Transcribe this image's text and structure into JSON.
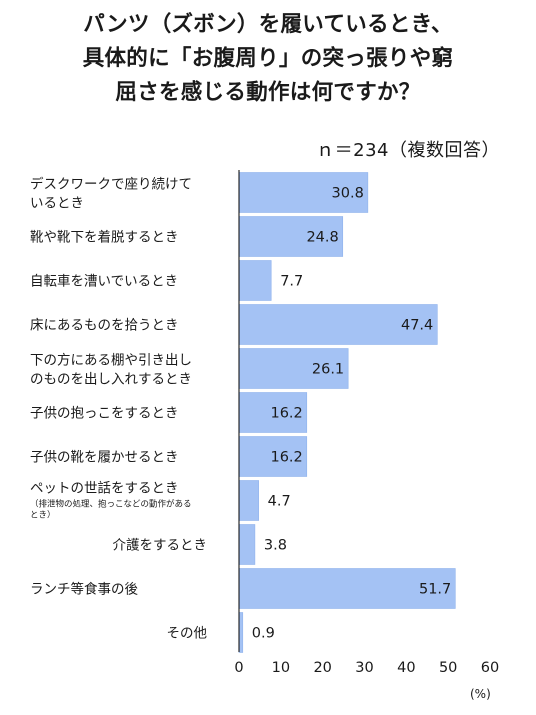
{
  "title_lines": [
    "パンツ（ズボン）を履いているとき、",
    "具体的に「お腹周り」の突っ張りや窮",
    "屈さを感じる動作は何ですか？"
  ],
  "colors": {
    "bar": "#a4c2f4",
    "bar_edge": "#8fb2ec",
    "axis": "#000000"
  },
  "chart_data": {
    "type": "bar",
    "orientation": "horizontal",
    "title": "パンツ（ズボン）を履いているとき、具体的に「お腹周り」の突っ張りや窮屈さを感じる動作は何ですか？",
    "subtitle": "ｎ＝234（複数回答）",
    "categories": [
      {
        "lines": [
          "デスクワークで座り続けて",
          "いるとき"
        ],
        "note": []
      },
      {
        "lines": [
          "靴や靴下を着脱するとき"
        ],
        "note": []
      },
      {
        "lines": [
          "自転車を漕いでいるとき"
        ],
        "note": []
      },
      {
        "lines": [
          "床にあるものを拾うとき"
        ],
        "note": []
      },
      {
        "lines": [
          "下の方にある棚や引き出し",
          "のものを出し入れするとき"
        ],
        "note": []
      },
      {
        "lines": [
          "子供の抱っこをするとき"
        ],
        "note": []
      },
      {
        "lines": [
          "子供の靴を履かせるとき"
        ],
        "note": []
      },
      {
        "lines": [
          "ペットの世話をするとき"
        ],
        "note": [
          "（排泄物の処理、抱っこなどの動作がある",
          "とき）"
        ]
      },
      {
        "lines": [
          "介護をするとき"
        ],
        "note": []
      },
      {
        "lines": [
          "ランチ等食事の後"
        ],
        "note": []
      },
      {
        "lines": [
          "その他"
        ],
        "note": []
      }
    ],
    "values": [
      30.8,
      24.8,
      7.7,
      47.4,
      26.1,
      16.2,
      16.2,
      4.7,
      3.8,
      51.7,
      0.9
    ],
    "value_labels": [
      "30.8",
      "24.8",
      "7.7",
      "47.4",
      "26.1",
      "16.2",
      "16.2",
      "4.7",
      "3.8",
      "51.7",
      "0.9"
    ],
    "xlim": [
      0,
      60
    ],
    "xticks": [
      0,
      10,
      20,
      30,
      40,
      50,
      60
    ],
    "xtick_labels": [
      "0",
      "10",
      "20",
      "30",
      "40",
      "50",
      "60"
    ],
    "xunit": "(%)",
    "grid": false,
    "legend": "none"
  }
}
